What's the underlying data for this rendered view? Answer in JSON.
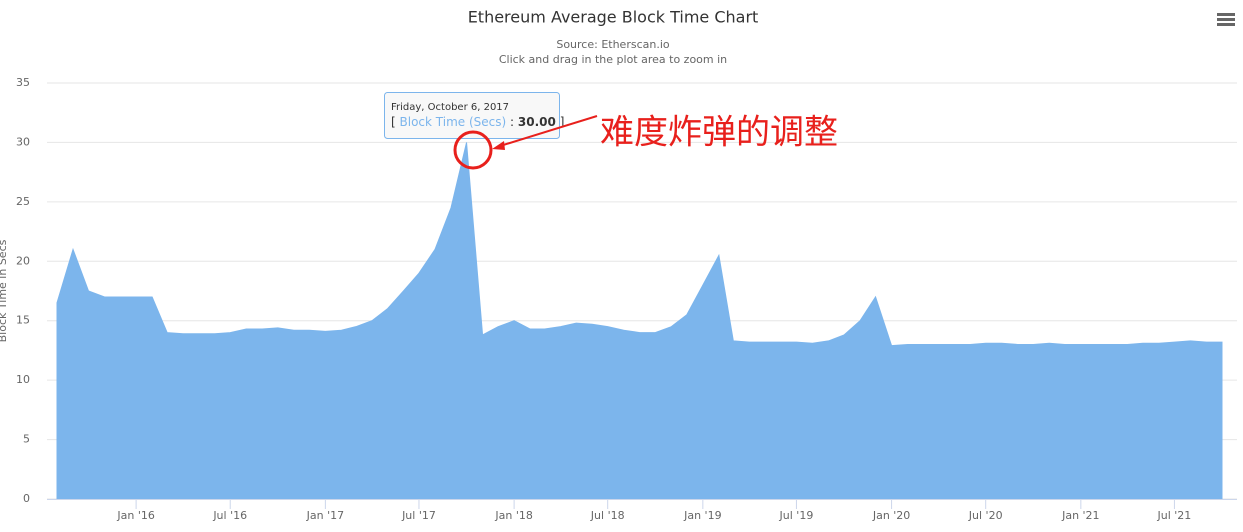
{
  "chart_data": {
    "type": "area",
    "title": "Ethereum Average Block Time Chart",
    "subtitle": [
      "Source: Etherscan.io",
      "Click and drag in the plot area to zoom in"
    ],
    "y_label": "Block Time in Secs",
    "x": [
      "2015-08",
      "2015-09",
      "2015-10",
      "2015-11",
      "2015-12",
      "2016-01",
      "2016-02",
      "2016-03",
      "2016-04",
      "2016-05",
      "2016-06",
      "2016-07",
      "2016-08",
      "2016-09",
      "2016-10",
      "2016-11",
      "2016-12",
      "2017-01",
      "2017-02",
      "2017-03",
      "2017-04",
      "2017-05",
      "2017-06",
      "2017-07",
      "2017-08",
      "2017-09",
      "2017-10",
      "2017-11",
      "2017-12",
      "2018-01",
      "2018-02",
      "2018-03",
      "2018-04",
      "2018-05",
      "2018-06",
      "2018-07",
      "2018-08",
      "2018-09",
      "2018-10",
      "2018-11",
      "2018-12",
      "2019-01",
      "2019-02",
      "2019-03",
      "2019-04",
      "2019-05",
      "2019-06",
      "2019-07",
      "2019-08",
      "2019-09",
      "2019-10",
      "2019-11",
      "2019-12",
      "2020-01",
      "2020-02",
      "2020-03",
      "2020-04",
      "2020-05",
      "2020-06",
      "2020-07",
      "2020-08",
      "2020-09",
      "2020-10",
      "2020-11",
      "2020-12",
      "2021-01",
      "2021-02",
      "2021-03",
      "2021-04",
      "2021-05",
      "2021-06",
      "2021-07",
      "2021-08",
      "2021-09",
      "2021-10"
    ],
    "series": [
      {
        "name": "Block Time (Secs)",
        "color": "#7cb5ec",
        "values": [
          16.5,
          21,
          17.5,
          17,
          17,
          17,
          17,
          14,
          13.9,
          13.9,
          13.9,
          14,
          14.3,
          14.3,
          14.4,
          14.2,
          14.2,
          14.1,
          14.2,
          14.5,
          15,
          16,
          17.5,
          19,
          21,
          24.5,
          30,
          13.8,
          14.5,
          15,
          14.3,
          14.3,
          14.5,
          14.8,
          14.7,
          14.5,
          14.2,
          14,
          14,
          14.5,
          15.5,
          18,
          20.5,
          13.3,
          13.2,
          13.2,
          13.2,
          13.2,
          13.1,
          13.3,
          13.8,
          15,
          17,
          12.9,
          13,
          13,
          13,
          13,
          13,
          13.1,
          13.1,
          13,
          13,
          13.1,
          13,
          13,
          13,
          13,
          13,
          13.1,
          13.1,
          13.2,
          13.3,
          13.2,
          13.2
        ]
      }
    ],
    "xlim": [
      "2015-08",
      "2021-10"
    ],
    "xticks": [
      {
        "value": "2016-01",
        "label": "Jan '16"
      },
      {
        "value": "2016-07",
        "label": "Jul '16"
      },
      {
        "value": "2017-01",
        "label": "Jan '17"
      },
      {
        "value": "2017-07",
        "label": "Jul '17"
      },
      {
        "value": "2018-01",
        "label": "Jan '18"
      },
      {
        "value": "2018-07",
        "label": "Jul '18"
      },
      {
        "value": "2019-01",
        "label": "Jan '19"
      },
      {
        "value": "2019-07",
        "label": "Jul '19"
      },
      {
        "value": "2020-01",
        "label": "Jan '20"
      },
      {
        "value": "2020-07",
        "label": "Jul '20"
      },
      {
        "value": "2021-01",
        "label": "Jan '21"
      },
      {
        "value": "2021-07",
        "label": "Jul '21"
      }
    ],
    "ylim": [
      0,
      35
    ],
    "yticks": [
      0,
      5,
      10,
      15,
      20,
      25,
      30,
      35
    ],
    "grid": true,
    "tooltip": {
      "date": "Friday, October 6, 2017",
      "open": "[",
      "series_label": "Block Time (Secs)",
      "sep": ":",
      "value_label": "30.00",
      "close": "]"
    },
    "annotation": "难度炸弹的调整"
  }
}
